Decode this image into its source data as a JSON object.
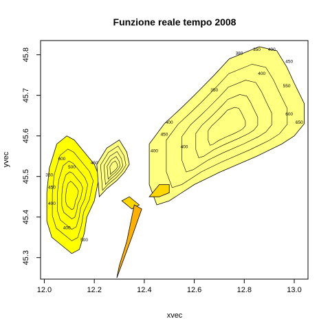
{
  "chart_data": {
    "type": "contour",
    "title": "Funzione reale tempo 2008",
    "xlabel": "xvec",
    "ylabel": "yvec",
    "xlim": [
      11.985,
      13.055
    ],
    "ylim": [
      45.247,
      45.835
    ],
    "x_ticks": [
      12.0,
      12.2,
      12.4,
      12.6,
      12.8,
      13.0
    ],
    "x_tick_labels": [
      "12.0",
      "12.2",
      "12.4",
      "12.6",
      "12.8",
      "13.0"
    ],
    "y_ticks": [
      45.3,
      45.4,
      45.5,
      45.6,
      45.7,
      45.8
    ],
    "y_tick_labels": [
      "45.3",
      "45.4",
      "45.5",
      "45.6",
      "45.7",
      "45.8"
    ],
    "fill_colors": {
      "low": "#ffff80",
      "mid": "#ffff00",
      "high": "#ffd700",
      "peak": "#ffb000"
    },
    "regions": [
      {
        "name": "west-lobe",
        "color": "#ffff00",
        "outline": [
          [
            12.01,
            45.46
          ],
          [
            12.02,
            45.52
          ],
          [
            12.05,
            45.58
          ],
          [
            12.09,
            45.6
          ],
          [
            12.12,
            45.59
          ],
          [
            12.16,
            45.56
          ],
          [
            12.2,
            45.53
          ],
          [
            12.22,
            45.5
          ],
          [
            12.2,
            45.44
          ],
          [
            12.17,
            45.4
          ],
          [
            12.16,
            45.36
          ],
          [
            12.14,
            45.32
          ],
          [
            12.11,
            45.31
          ],
          [
            12.07,
            45.33
          ],
          [
            12.03,
            45.35
          ],
          [
            12.01,
            45.39
          ]
        ]
      },
      {
        "name": "west-strip",
        "color": "#ffff80",
        "outline": [
          [
            12.21,
            45.53
          ],
          [
            12.25,
            45.57
          ],
          [
            12.3,
            45.59
          ],
          [
            12.33,
            45.56
          ],
          [
            12.34,
            45.53
          ],
          [
            12.32,
            45.51
          ],
          [
            12.29,
            45.49
          ],
          [
            12.25,
            45.47
          ],
          [
            12.22,
            45.45
          ]
        ]
      },
      {
        "name": "north-coast",
        "color": "#ffff80",
        "outline": [
          [
            12.42,
            45.48
          ],
          [
            12.42,
            45.58
          ],
          [
            12.48,
            45.63
          ],
          [
            12.55,
            45.67
          ],
          [
            12.6,
            45.7
          ],
          [
            12.68,
            45.75
          ],
          [
            12.74,
            45.79
          ],
          [
            12.86,
            45.82
          ],
          [
            12.93,
            45.81
          ],
          [
            12.97,
            45.77
          ],
          [
            13.0,
            45.73
          ],
          [
            13.04,
            45.68
          ],
          [
            13.04,
            45.63
          ],
          [
            13.0,
            45.6
          ],
          [
            12.95,
            45.58
          ],
          [
            12.85,
            45.55
          ],
          [
            12.7,
            45.51
          ],
          [
            12.6,
            45.48
          ],
          [
            12.55,
            45.46
          ],
          [
            12.5,
            45.44
          ],
          [
            12.45,
            45.43
          ]
        ]
      },
      {
        "name": "islet-a",
        "color": "#ffd700",
        "outline": [
          [
            12.31,
            45.44
          ],
          [
            12.35,
            45.42
          ],
          [
            12.38,
            45.43
          ],
          [
            12.34,
            45.45
          ]
        ]
      },
      {
        "name": "islet-b",
        "color": "#ffd700",
        "outline": [
          [
            12.42,
            45.45
          ],
          [
            12.46,
            45.48
          ],
          [
            12.5,
            45.48
          ],
          [
            12.5,
            45.46
          ],
          [
            12.46,
            45.45
          ]
        ]
      },
      {
        "name": "lido-strip",
        "color": "#ffb000",
        "outline": [
          [
            12.36,
            45.43
          ],
          [
            12.39,
            45.42
          ],
          [
            12.35,
            45.35
          ],
          [
            12.32,
            45.3
          ],
          [
            12.29,
            45.25
          ],
          [
            12.3,
            45.28
          ],
          [
            12.33,
            45.34
          ]
        ]
      }
    ],
    "contour_labels": [
      {
        "text": "380",
        "x": 12.78,
        "y": 45.8
      },
      {
        "text": "350",
        "x": 12.85,
        "y": 45.81
      },
      {
        "text": "400",
        "x": 12.91,
        "y": 45.81
      },
      {
        "text": "450",
        "x": 12.98,
        "y": 45.78
      },
      {
        "text": "400",
        "x": 12.87,
        "y": 45.75
      },
      {
        "text": "350",
        "x": 12.68,
        "y": 45.71
      },
      {
        "text": "550",
        "x": 12.97,
        "y": 45.72
      },
      {
        "text": "600",
        "x": 12.98,
        "y": 45.65
      },
      {
        "text": "650",
        "x": 13.02,
        "y": 45.63
      },
      {
        "text": "400",
        "x": 12.5,
        "y": 45.63
      },
      {
        "text": "450",
        "x": 12.48,
        "y": 45.6
      },
      {
        "text": "400",
        "x": 12.44,
        "y": 45.56
      },
      {
        "text": "400",
        "x": 12.56,
        "y": 45.57
      },
      {
        "text": "450",
        "x": 12.2,
        "y": 45.53
      },
      {
        "text": "600",
        "x": 12.07,
        "y": 45.54
      },
      {
        "text": "500",
        "x": 12.11,
        "y": 45.52
      },
      {
        "text": "350",
        "x": 12.02,
        "y": 45.5
      },
      {
        "text": "450",
        "x": 12.03,
        "y": 45.47
      },
      {
        "text": "400",
        "x": 12.03,
        "y": 45.43
      },
      {
        "text": "400",
        "x": 12.09,
        "y": 45.37
      },
      {
        "text": "500",
        "x": 12.16,
        "y": 45.34
      }
    ]
  }
}
